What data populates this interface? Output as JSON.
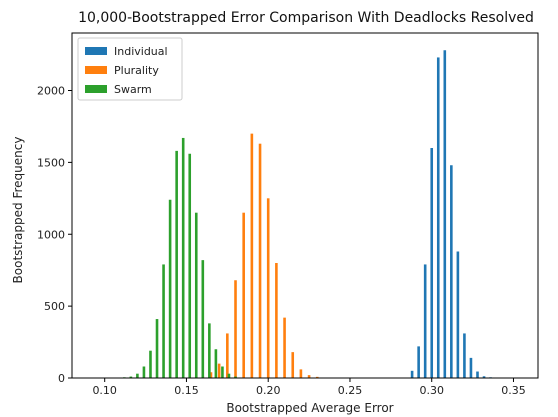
{
  "chart_data": {
    "type": "bar",
    "title": "10,000-Bootstrapped Error Comparison With Deadlocks Resolved",
    "xlabel": "Bootstrapped Average Error",
    "ylabel": "Bootstrapped Frequency",
    "xlim": [
      0.08,
      0.365
    ],
    "ylim": [
      0,
      2400
    ],
    "xticks": [
      0.1,
      0.15,
      0.2,
      0.25,
      0.3,
      0.35
    ],
    "xtick_labels": [
      "0.10",
      "0.15",
      "0.20",
      "0.25",
      "0.30",
      "0.35"
    ],
    "yticks": [
      0,
      500,
      1000,
      1500,
      2000
    ],
    "ytick_labels": [
      "0",
      "500",
      "1000",
      "1500",
      "2000"
    ],
    "grid": false,
    "legend_position": "top-left",
    "series": [
      {
        "name": "Individual",
        "color": "#1f77b4",
        "x": [
          0.288,
          0.292,
          0.296,
          0.3,
          0.304,
          0.308,
          0.312,
          0.316,
          0.32,
          0.324,
          0.328,
          0.332,
          0.336,
          0.34,
          0.344
        ],
        "values": [
          50,
          220,
          790,
          1600,
          2230,
          2280,
          1480,
          880,
          310,
          140,
          45,
          12,
          5,
          3,
          2
        ]
      },
      {
        "name": "Plurality",
        "color": "#ff7f0e",
        "x": [
          0.16,
          0.165,
          0.17,
          0.175,
          0.18,
          0.185,
          0.19,
          0.195,
          0.2,
          0.205,
          0.21,
          0.215,
          0.22,
          0.225,
          0.23,
          0.235
        ],
        "values": [
          12,
          40,
          100,
          310,
          680,
          1150,
          1700,
          1630,
          1250,
          800,
          420,
          180,
          60,
          20,
          8,
          3
        ]
      },
      {
        "name": "Swarm",
        "color": "#2ca02c",
        "x": [
          0.112,
          0.116,
          0.12,
          0.124,
          0.128,
          0.132,
          0.136,
          0.14,
          0.144,
          0.148,
          0.152,
          0.156,
          0.16,
          0.164,
          0.168,
          0.172,
          0.176,
          0.18,
          0.184
        ],
        "values": [
          5,
          10,
          30,
          80,
          190,
          410,
          790,
          1240,
          1580,
          1670,
          1560,
          1150,
          820,
          380,
          200,
          80,
          30,
          10,
          3
        ]
      }
    ]
  }
}
